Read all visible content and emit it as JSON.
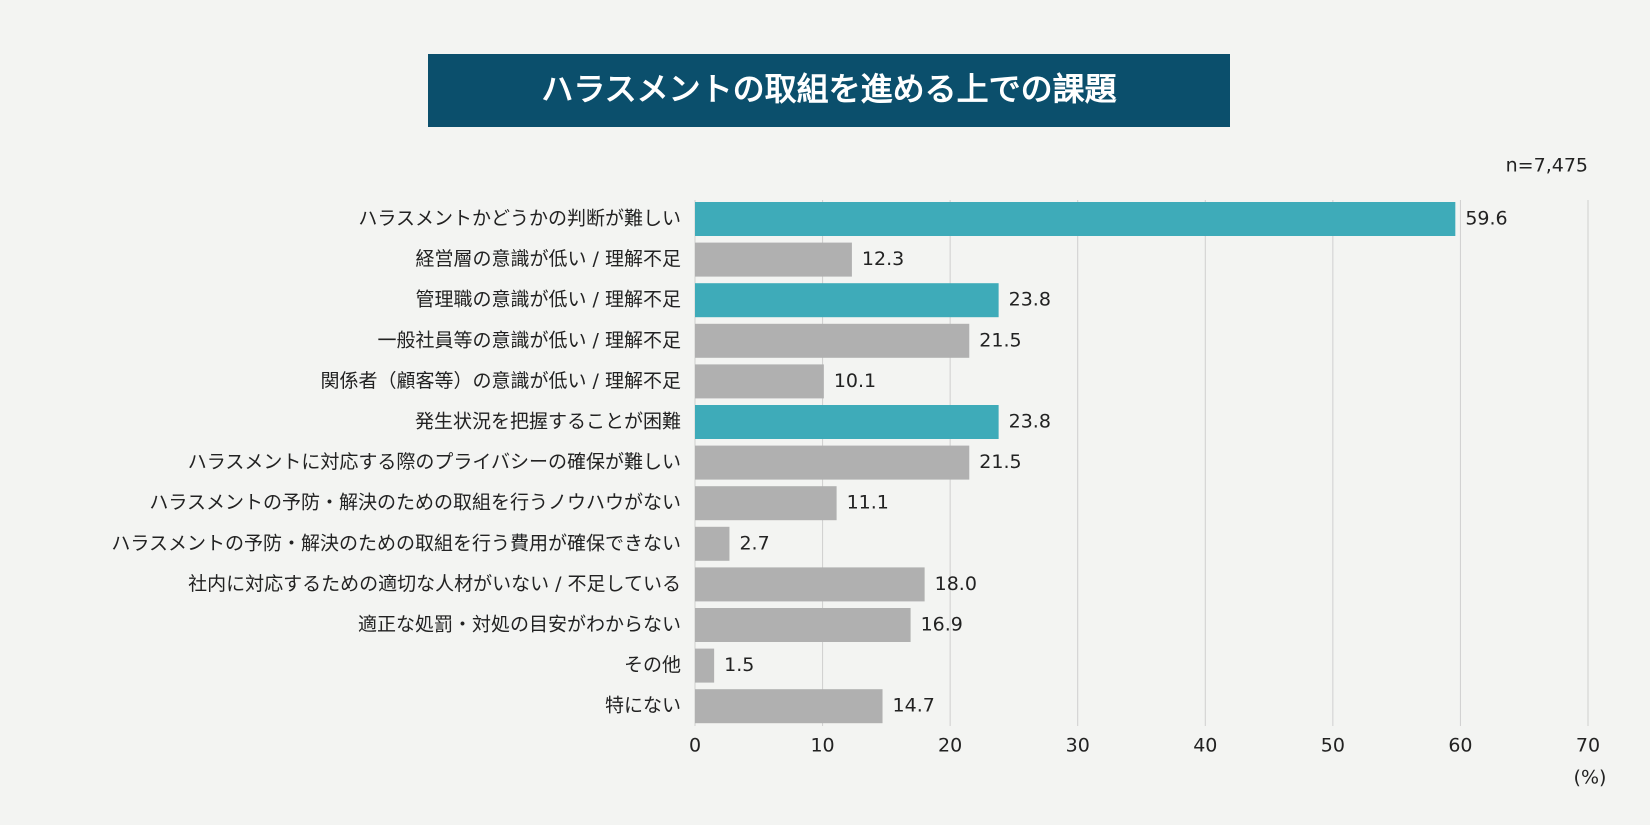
{
  "chart_data": {
    "type": "hbar",
    "title": "ハラスメントの取組を進める上での課題",
    "annotation": "n=7,475",
    "x_label": "(%)",
    "categories": [
      "ハラスメントかどうかの判断が難しい",
      "経営層の意識が低い / 理解不足",
      "管理職の意識が低い / 理解不足",
      "一般社員等の意識が低い / 理解不足",
      "関係者（顧客等）の意識が低い / 理解不足",
      "発生状況を把握することが困難",
      "ハラスメントに対応する際のプライバシーの確保が難しい",
      "ハラスメントの予防・解決のための取組を行うノウハウがない",
      "ハラスメントの予防・解決のための取組を行う費用が確保できない",
      "社内に対応するための適切な人材がいない / 不足している",
      "適正な処罰・対処の目安がわからない",
      "その他",
      "特にない"
    ],
    "values": [
      59.6,
      12.3,
      23.8,
      21.5,
      10.1,
      23.8,
      21.5,
      11.1,
      2.7,
      18.0,
      16.9,
      1.5,
      14.7
    ],
    "value_labels": [
      "59.6",
      "12.3",
      "23.8",
      "21.5",
      "10.1",
      "23.8",
      "21.5",
      "11.1",
      "2.7",
      "18.0",
      "16.9",
      "1.5",
      "14.7"
    ],
    "colors": [
      "#3eabb9",
      "#b0b0b0",
      "#3eabb9",
      "#b0b0b0",
      "#b0b0b0",
      "#3eabb9",
      "#b0b0b0",
      "#b0b0b0",
      "#b0b0b0",
      "#b0b0b0",
      "#b0b0b0",
      "#b0b0b0",
      "#b0b0b0"
    ],
    "xlim": [
      0,
      70
    ],
    "xticks": [
      0,
      10,
      20,
      30,
      40,
      50,
      60,
      70
    ],
    "grid": true
  }
}
